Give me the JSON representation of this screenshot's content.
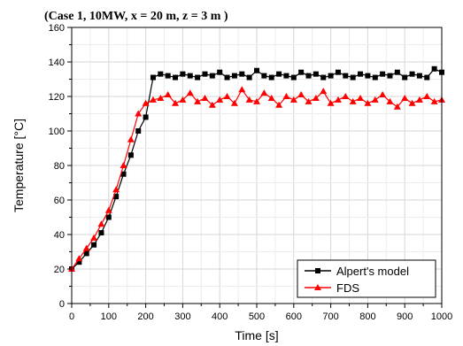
{
  "chart_data": {
    "type": "line",
    "title": "(Case 1, 10MW, x = 20 m, z = 3 m )",
    "xlabel": "Time [s]",
    "ylabel": "Temperature [°C]",
    "xlim": [
      0,
      1000
    ],
    "ylim": [
      0,
      160
    ],
    "xticks": [
      0,
      100,
      200,
      300,
      400,
      500,
      600,
      700,
      800,
      900,
      1000
    ],
    "yticks": [
      0,
      20,
      40,
      60,
      80,
      100,
      120,
      140,
      160
    ],
    "grid": true,
    "legend_position": "bottom-right",
    "series": [
      {
        "name": "Alpert's model",
        "color": "#000000",
        "marker": "square",
        "x": [
          0,
          20,
          40,
          60,
          80,
          100,
          120,
          140,
          160,
          180,
          200,
          220,
          240,
          260,
          280,
          300,
          320,
          340,
          360,
          380,
          400,
          420,
          440,
          460,
          480,
          500,
          520,
          540,
          560,
          580,
          600,
          620,
          640,
          660,
          680,
          700,
          720,
          740,
          760,
          780,
          800,
          820,
          840,
          860,
          880,
          900,
          920,
          940,
          960,
          980,
          1000
        ],
        "y": [
          20,
          24,
          29,
          34,
          41,
          50,
          62,
          75,
          86,
          100,
          108,
          131,
          133,
          132,
          131,
          133,
          132,
          131,
          133,
          132,
          134,
          131,
          132,
          133,
          131,
          135,
          132,
          131,
          133,
          132,
          131,
          134,
          132,
          133,
          131,
          132,
          134,
          132,
          131,
          133,
          132,
          131,
          133,
          132,
          134,
          131,
          133,
          132,
          131,
          136,
          134
        ]
      },
      {
        "name": "FDS",
        "color": "#ff0000",
        "marker": "triangle",
        "x": [
          0,
          20,
          40,
          60,
          80,
          100,
          120,
          140,
          160,
          180,
          200,
          220,
          240,
          260,
          280,
          300,
          320,
          340,
          360,
          380,
          400,
          420,
          440,
          460,
          480,
          500,
          520,
          540,
          560,
          580,
          600,
          620,
          640,
          660,
          680,
          700,
          720,
          740,
          760,
          780,
          800,
          820,
          840,
          860,
          880,
          900,
          920,
          940,
          960,
          980,
          1000
        ],
        "y": [
          20,
          26,
          32,
          38,
          46,
          54,
          66,
          80,
          95,
          110,
          116,
          118,
          119,
          121,
          116,
          118,
          122,
          117,
          119,
          115,
          118,
          120,
          116,
          124,
          118,
          117,
          122,
          119,
          115,
          120,
          118,
          121,
          117,
          119,
          123,
          116,
          118,
          120,
          117,
          119,
          116,
          118,
          121,
          117,
          114,
          119,
          116,
          118,
          120,
          117,
          118
        ]
      }
    ]
  }
}
